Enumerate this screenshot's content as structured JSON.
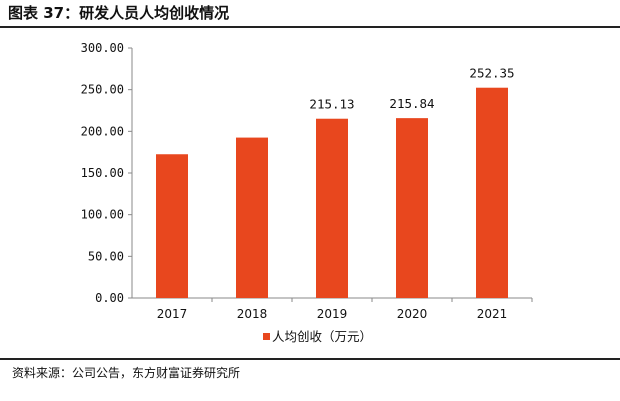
{
  "header": {
    "title": "图表 37：研发人员人均创收情况"
  },
  "footer": {
    "source": "资料来源：公司公告，东方财富证券研究所"
  },
  "colors": {
    "bar": "#E8471E",
    "axis": "#888888"
  },
  "chart_data": {
    "type": "bar",
    "title": "",
    "xlabel": "",
    "ylabel": "",
    "categories": [
      "2017",
      "2018",
      "2019",
      "2020",
      "2021"
    ],
    "series": [
      {
        "name": "人均创收（万元）",
        "values": [
          172.5,
          192.5,
          215.13,
          215.84,
          252.35
        ]
      }
    ],
    "data_labels": [
      "",
      "",
      "215.13",
      "215.84",
      "252.35"
    ],
    "ylim": [
      0,
      300
    ],
    "yticks": [
      "0.00",
      "50.00",
      "100.00",
      "150.00",
      "200.00",
      "250.00",
      "300.00"
    ],
    "ytick_values": [
      0,
      50,
      100,
      150,
      200,
      250,
      300
    ],
    "legend_position": "bottom",
    "grid": false
  }
}
